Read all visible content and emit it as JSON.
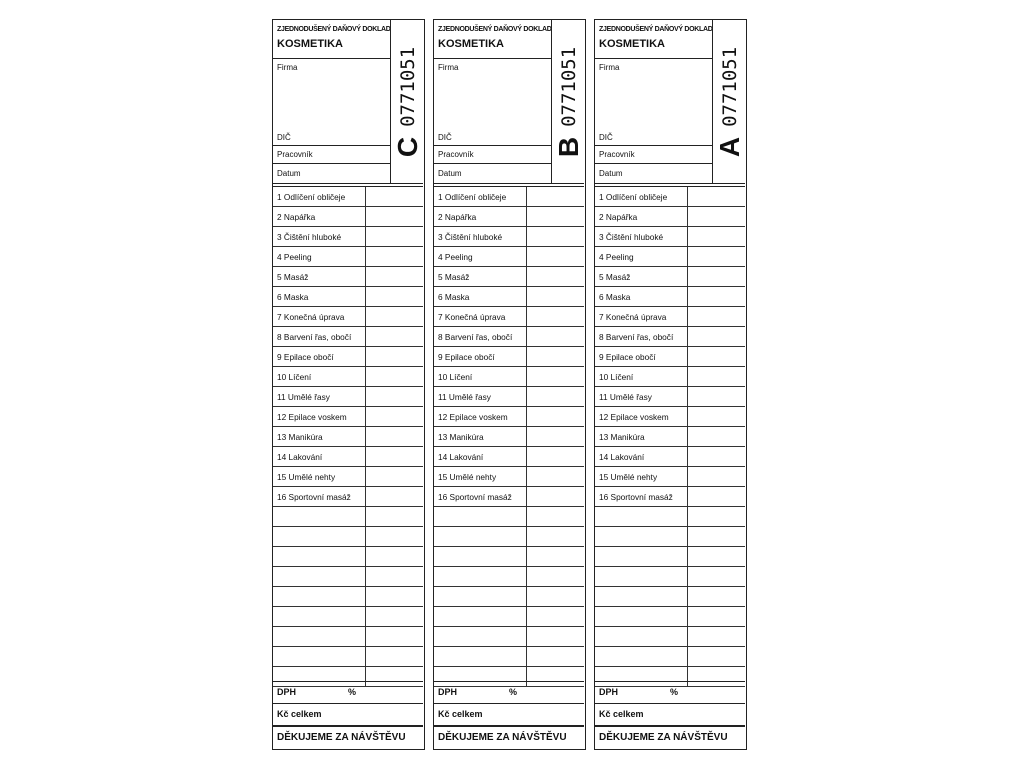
{
  "form": {
    "doc_title": "Zjednodušený daňový doklad",
    "product": "KOSMETIKA",
    "firma_label": "Firma",
    "dic_label": "DIČ",
    "pracovnik_label": "Pracovník",
    "datum_label": "Datum",
    "dph_label": "DPH",
    "percent_label": "%",
    "total_label": "Kč celkem",
    "thanks": "DĚKUJEME ZA NÁVŠTĚVU",
    "number": "0771051",
    "items": [
      "1 Odlíčení obličeje",
      "2 Napářka",
      "3 Čištění hluboké",
      "4 Peeling",
      "5 Masáž",
      "6 Maska",
      "7 Konečná úprava",
      "8 Barvení řas, obočí",
      "9 Epilace obočí",
      "10 Líčení",
      "11 Umělé řasy",
      "12 Epilace voskem",
      "13 Manikúra",
      "14 Lakování",
      "15 Umělé nehty",
      "16 Sportovní masáž",
      "",
      "",
      "",
      "",
      "",
      "",
      "",
      "",
      ""
    ]
  },
  "copies": [
    {
      "letter": "C"
    },
    {
      "letter": "B"
    },
    {
      "letter": "A"
    }
  ]
}
